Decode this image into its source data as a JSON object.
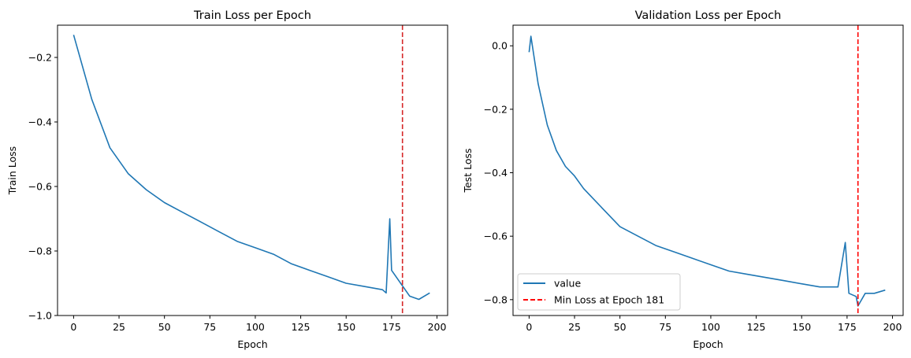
{
  "chart_data": [
    {
      "type": "line",
      "title": "Train Loss per Epoch",
      "xlabel": "Epoch",
      "ylabel": "Train Loss",
      "xlim": [
        -8.85,
        205.85
      ],
      "ylim": [
        -1.0,
        -0.1
      ],
      "xticks": [
        0,
        25,
        50,
        75,
        100,
        125,
        150,
        175,
        200
      ],
      "yticks": [
        -1.0,
        -0.8,
        -0.6,
        -0.4,
        -0.2
      ],
      "ytick_labels": [
        "−1.0",
        "−0.8",
        "−0.6",
        "−0.4",
        "−0.2"
      ],
      "grid": false,
      "series": [
        {
          "name": "value",
          "color": "#1f77b4",
          "x": [
            0,
            10,
            20,
            30,
            40,
            50,
            60,
            70,
            80,
            90,
            100,
            110,
            120,
            130,
            140,
            150,
            160,
            170,
            172,
            174,
            175,
            180,
            185,
            190,
            196
          ],
          "y": [
            -0.13,
            -0.33,
            -0.48,
            -0.56,
            -0.61,
            -0.65,
            -0.68,
            -0.71,
            -0.74,
            -0.77,
            -0.79,
            -0.81,
            -0.84,
            -0.86,
            -0.88,
            -0.9,
            -0.91,
            -0.92,
            -0.93,
            -0.7,
            -0.86,
            -0.9,
            -0.94,
            -0.95,
            -0.93
          ]
        }
      ],
      "vline": {
        "x": 181,
        "color": "#d62728",
        "style": "dashed"
      }
    },
    {
      "type": "line",
      "title": "Validation Loss per Epoch",
      "xlabel": "Epoch",
      "ylabel": "Test Loss",
      "xlim": [
        -8.85,
        205.85
      ],
      "ylim": [
        -0.85,
        0.065
      ],
      "xticks": [
        0,
        25,
        50,
        75,
        100,
        125,
        150,
        175,
        200
      ],
      "yticks": [
        -0.8,
        -0.6,
        -0.4,
        -0.2,
        0.0
      ],
      "ytick_labels": [
        "−0.8",
        "−0.6",
        "−0.4",
        "−0.2",
        "0.0"
      ],
      "grid": false,
      "series": [
        {
          "name": "value",
          "color": "#1f77b4",
          "x": [
            0,
            1,
            5,
            10,
            15,
            20,
            25,
            30,
            40,
            50,
            60,
            70,
            80,
            90,
            100,
            110,
            120,
            130,
            140,
            150,
            160,
            170,
            174,
            176,
            180,
            181,
            185,
            190,
            196
          ],
          "y": [
            -0.02,
            0.03,
            -0.12,
            -0.25,
            -0.33,
            -0.38,
            -0.41,
            -0.45,
            -0.51,
            -0.57,
            -0.6,
            -0.63,
            -0.65,
            -0.67,
            -0.69,
            -0.71,
            -0.72,
            -0.73,
            -0.74,
            -0.75,
            -0.76,
            -0.76,
            -0.62,
            -0.78,
            -0.79,
            -0.82,
            -0.78,
            -0.78,
            -0.77
          ]
        }
      ],
      "vline": {
        "x": 181,
        "color": "#ff0000",
        "style": "dashed"
      },
      "legend": {
        "placement": "lower-left",
        "entries": [
          {
            "label": "value",
            "color": "#1f77b4",
            "style": "solid"
          },
          {
            "label": "Min Loss at Epoch 181",
            "color": "#ff0000",
            "style": "dashed"
          }
        ]
      }
    }
  ]
}
